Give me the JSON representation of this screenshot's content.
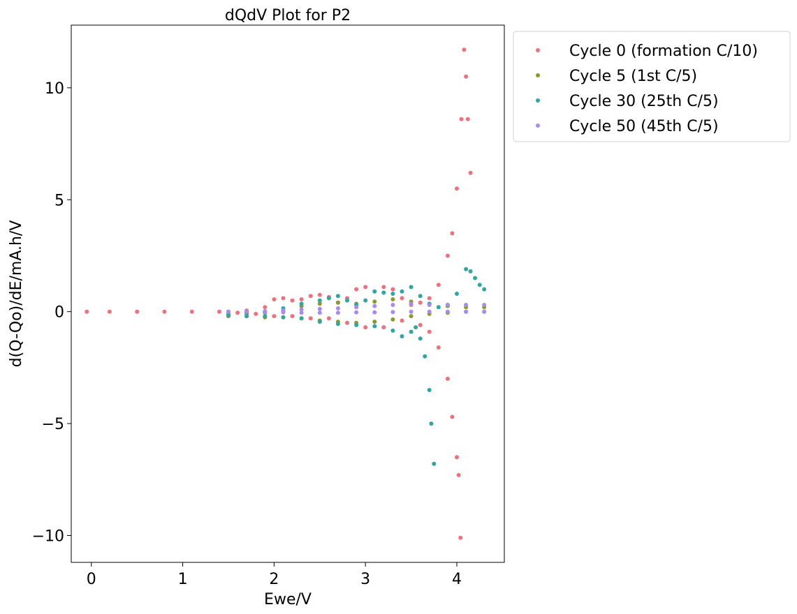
{
  "chart_data": {
    "type": "scatter",
    "title": "dQdV Plot for P2",
    "xlabel": "Ewe/V",
    "ylabel": "d(Q-Qo)/dE/mA.h/V",
    "xlim": [
      -0.22,
      4.52
    ],
    "ylim": [
      -11.2,
      12.8
    ],
    "xticks": [
      0,
      1,
      2,
      3,
      4
    ],
    "yticks": [
      -10,
      -5,
      0,
      5,
      10
    ],
    "xtick_labels": [
      "0",
      "1",
      "2",
      "3",
      "4"
    ],
    "ytick_labels": [
      "−10",
      "−5",
      "0",
      "5",
      "10"
    ],
    "grid": false,
    "legend_position": "outside-upper-right",
    "series": [
      {
        "name": "Cycle 0 (formation C/10)",
        "color": "#f0707e",
        "x": [
          -0.05,
          0.2,
          0.5,
          0.8,
          1.1,
          1.4,
          1.5,
          1.7,
          1.9,
          2.0,
          2.1,
          2.2,
          2.3,
          2.4,
          2.5,
          2.6,
          2.7,
          2.8,
          2.9,
          3.0,
          3.1,
          3.2,
          3.3,
          3.4,
          3.5,
          3.6,
          3.7,
          3.8,
          3.9,
          3.95,
          4.0,
          4.05,
          4.08,
          4.1,
          4.12,
          4.15,
          1.6,
          1.8,
          2.0,
          2.2,
          2.4,
          2.6,
          2.8,
          3.0,
          3.2,
          3.4,
          3.6,
          3.7,
          3.8,
          3.9,
          3.95,
          4.0,
          4.02,
          4.04
        ],
        "y": [
          0,
          0,
          0,
          0,
          0,
          0,
          0,
          0.05,
          0.2,
          0.55,
          0.6,
          0.5,
          0.55,
          0.7,
          0.75,
          0.65,
          0.4,
          0.6,
          1.0,
          1.1,
          0.9,
          1.1,
          1.0,
          0.6,
          0.3,
          0.4,
          0.6,
          1.2,
          2.5,
          3.5,
          5.5,
          8.6,
          11.7,
          10.5,
          8.6,
          6.2,
          -0.05,
          -0.1,
          -0.2,
          -0.2,
          -0.3,
          -0.3,
          -0.5,
          -0.7,
          -0.7,
          -0.4,
          -0.6,
          -0.9,
          -1.6,
          -3.0,
          -4.7,
          -6.5,
          -7.3,
          -10.1
        ]
      },
      {
        "name": "Cycle 5 (1st C/5)",
        "color": "#8b9a2f",
        "x": [
          1.5,
          1.7,
          1.9,
          2.1,
          2.3,
          2.5,
          2.7,
          2.9,
          3.1,
          3.3,
          3.5,
          3.7,
          3.9,
          4.1,
          4.3,
          1.5,
          1.7,
          1.9,
          2.1,
          2.3,
          2.5,
          2.7,
          2.9,
          3.1,
          3.3,
          3.5,
          3.7,
          3.9,
          4.1,
          4.3
        ],
        "y": [
          -0.15,
          -0.1,
          -0.05,
          0.05,
          0.25,
          0.35,
          0.4,
          0.35,
          0.45,
          0.55,
          0.45,
          0.35,
          0.25,
          0.2,
          0.2,
          -0.2,
          -0.2,
          -0.25,
          -0.25,
          -0.3,
          -0.4,
          -0.45,
          -0.5,
          -0.45,
          -0.35,
          -0.2,
          -0.1,
          -0.05,
          0.0,
          0.0
        ]
      },
      {
        "name": "Cycle 30 (25th C/5)",
        "color": "#2fa79f",
        "x": [
          1.5,
          1.7,
          1.9,
          2.1,
          2.3,
          2.5,
          2.6,
          2.7,
          2.8,
          2.9,
          3.0,
          3.1,
          3.2,
          3.3,
          3.4,
          3.5,
          3.6,
          3.7,
          3.8,
          3.9,
          4.0,
          4.1,
          4.15,
          4.2,
          4.25,
          4.3,
          1.5,
          1.7,
          1.9,
          2.1,
          2.3,
          2.5,
          2.7,
          2.9,
          3.1,
          3.3,
          3.4,
          3.5,
          3.55,
          3.6,
          3.65,
          3.7,
          3.72,
          3.75
        ],
        "y": [
          -0.1,
          -0.05,
          0.0,
          0.15,
          0.35,
          0.5,
          0.6,
          0.7,
          0.5,
          0.3,
          0.5,
          0.9,
          0.85,
          0.8,
          0.9,
          1.1,
          0.7,
          0.35,
          0.2,
          0.3,
          0.8,
          1.9,
          1.8,
          1.5,
          1.2,
          1.0,
          -0.15,
          -0.2,
          -0.2,
          -0.25,
          -0.3,
          -0.45,
          -0.55,
          -0.6,
          -0.65,
          -0.85,
          -1.1,
          -0.9,
          -0.7,
          -1.2,
          -2.0,
          -3.5,
          -5.0,
          -6.8
        ]
      },
      {
        "name": "Cycle 50 (45th C/5)",
        "color": "#a78bef",
        "x": [
          1.5,
          1.7,
          1.9,
          2.1,
          2.3,
          2.5,
          2.7,
          2.9,
          3.1,
          3.3,
          3.5,
          3.7,
          3.9,
          4.1,
          4.3,
          1.5,
          1.7,
          1.9,
          2.1,
          2.3,
          2.5,
          2.7,
          2.9,
          3.1,
          3.3,
          3.5,
          3.7,
          3.9,
          4.1,
          4.3
        ],
        "y": [
          0.0,
          0.0,
          0.02,
          0.05,
          0.1,
          0.12,
          0.15,
          0.2,
          0.25,
          0.3,
          0.35,
          0.3,
          0.3,
          0.3,
          0.3,
          0.0,
          0.0,
          -0.02,
          -0.03,
          -0.05,
          -0.05,
          -0.05,
          -0.03,
          -0.03,
          -0.02,
          0.0,
          0.0,
          0.0,
          0.0,
          0.0
        ]
      }
    ]
  }
}
